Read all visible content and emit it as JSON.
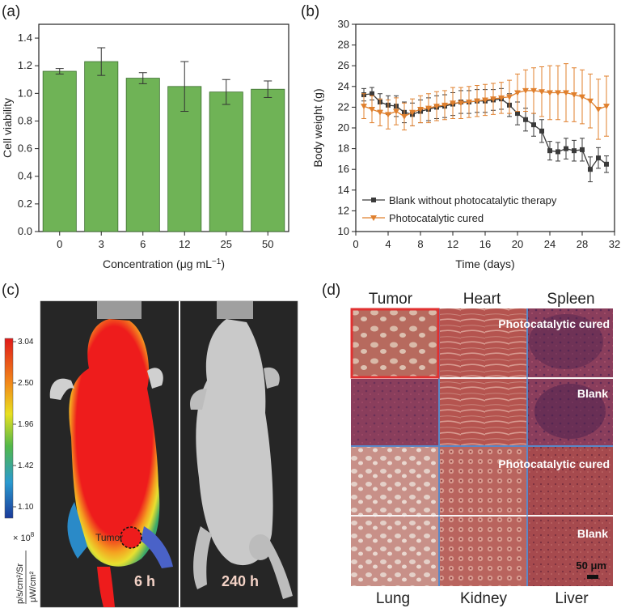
{
  "figure": {
    "panel_labels": [
      "(a)",
      "(b)",
      "(c)",
      "(d)"
    ]
  },
  "colors": {
    "bar_fill": "#6fb356",
    "bar_stroke": "#3c6e2f",
    "blank_series": "#3a3a3a",
    "cured_series": "#e0802e",
    "tumor_box": "#e03030",
    "grid_lines": "#5b87c6"
  },
  "chart_data": [
    {
      "type": "bar",
      "panel": "(a)",
      "categories": [
        "0",
        "3",
        "6",
        "12",
        "25",
        "50"
      ],
      "values": [
        1.16,
        1.23,
        1.11,
        1.05,
        1.01,
        1.03
      ],
      "errors": [
        0.02,
        0.1,
        0.04,
        0.18,
        0.09,
        0.06
      ],
      "xlabel": "Concentration (μg mL",
      "xlabel_sup": "−1",
      "xlabel_end": ")",
      "ylabel": "Cell viability",
      "ylim": [
        0,
        1.5
      ],
      "yticks": [
        "0.0",
        "0.2",
        "0.4",
        "0.6",
        "0.8",
        "1.0",
        "1.2",
        "1.4"
      ]
    },
    {
      "type": "line",
      "panel": "(b)",
      "xlabel": "Time (days)",
      "ylabel": "Body weight (g)",
      "xlim": [
        0,
        32
      ],
      "ylim": [
        10,
        30
      ],
      "xticks": [
        "0",
        "4",
        "8",
        "12",
        "16",
        "20",
        "24",
        "28",
        "32"
      ],
      "yticks": [
        "10",
        "12",
        "14",
        "16",
        "18",
        "20",
        "22",
        "24",
        "26",
        "28",
        "30"
      ],
      "series": [
        {
          "name": "Blank without photocatalytic therapy",
          "marker": "square",
          "x": [
            1,
            2,
            3,
            4,
            5,
            6,
            7,
            8,
            9,
            10,
            11,
            12,
            13,
            14,
            15,
            16,
            17,
            18,
            19,
            20,
            21,
            22,
            23,
            24,
            25,
            26,
            27,
            28,
            29,
            30,
            31
          ],
          "y": [
            23.2,
            23.3,
            22.5,
            22.2,
            22.1,
            21.5,
            21.3,
            21.6,
            21.8,
            22.0,
            22.1,
            22.3,
            22.5,
            22.5,
            22.6,
            22.6,
            22.7,
            22.8,
            22.2,
            21.4,
            20.8,
            20.3,
            19.7,
            17.8,
            17.7,
            18.0,
            17.8,
            17.9,
            16.0,
            17.1,
            16.5
          ],
          "err": [
            0.6,
            0.6,
            0.8,
            0.9,
            1.0,
            1.0,
            1.1,
            1.1,
            1.1,
            1.1,
            1.1,
            1.1,
            1.1,
            1.1,
            1.1,
            1.1,
            1.0,
            1.0,
            1.1,
            1.1,
            1.1,
            1.1,
            1.1,
            0.9,
            0.9,
            1.0,
            1.0,
            1.1,
            1.2,
            1.0,
            0.8
          ]
        },
        {
          "name": "Photocatalytic cured",
          "marker": "triangle-down",
          "x": [
            1,
            2,
            3,
            4,
            5,
            6,
            7,
            8,
            9,
            10,
            11,
            12,
            13,
            14,
            15,
            16,
            17,
            18,
            19,
            20,
            21,
            22,
            23,
            24,
            25,
            26,
            27,
            28,
            29,
            30,
            31
          ],
          "y": [
            22.1,
            21.8,
            21.5,
            21.3,
            21.6,
            21.1,
            21.5,
            21.8,
            21.9,
            22.1,
            22.2,
            22.4,
            22.4,
            22.5,
            22.6,
            22.7,
            22.8,
            22.9,
            23.0,
            23.4,
            23.6,
            23.6,
            23.5,
            23.4,
            23.4,
            23.4,
            23.2,
            23.0,
            22.6,
            21.8,
            22.1
          ],
          "err": [
            1.2,
            1.3,
            1.3,
            1.4,
            1.3,
            1.3,
            1.3,
            1.3,
            1.4,
            1.4,
            1.4,
            1.5,
            1.5,
            1.5,
            1.5,
            1.5,
            1.5,
            1.5,
            1.6,
            1.8,
            2.0,
            2.2,
            2.4,
            2.6,
            2.6,
            2.8,
            2.6,
            2.6,
            2.6,
            2.9,
            2.9
          ]
        }
      ]
    }
  ],
  "panel_c": {
    "colorbar_ticks": [
      "3.04",
      "2.50",
      "1.96",
      "1.42",
      "1.10"
    ],
    "colorbar_multiplier": "× 10",
    "colorbar_exp": "8",
    "unit_top": "p/s/cm²/Sr",
    "unit_bottom": "μW/cm²",
    "tumor_label": "Tumor",
    "time_left": "6 h",
    "time_right": "240 h"
  },
  "panel_d": {
    "col_top": [
      "Tumor",
      "Heart",
      "Spleen"
    ],
    "col_bottom": [
      "Lung",
      "Kidney",
      "Liver"
    ],
    "row_labels": [
      "Photocatalytic cured",
      "Blank",
      "Photocatalytic cured",
      "Blank"
    ],
    "scale_bar": "50 μm"
  }
}
